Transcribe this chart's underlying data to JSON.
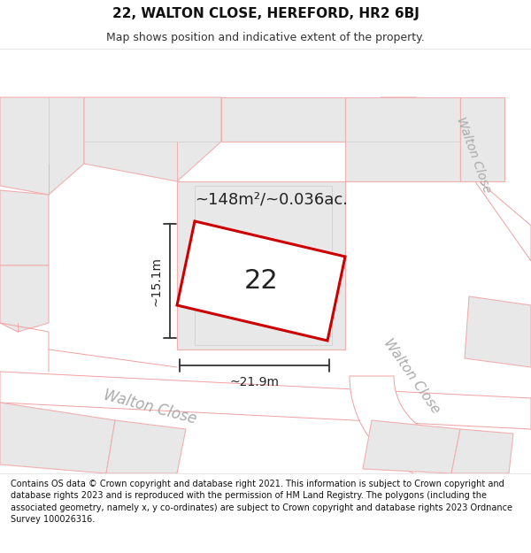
{
  "title_line1": "22, WALTON CLOSE, HEREFORD, HR2 6BJ",
  "title_line2": "Map shows position and indicative extent of the property.",
  "area_text": "~148m²/~0.036ac.",
  "dim_width": "~21.9m",
  "dim_height": "~15.1m",
  "property_label": "22",
  "footer": "Contains OS data © Crown copyright and database right 2021. This information is subject to Crown copyright and database rights 2023 and is reproduced with the permission of HM Land Registry. The polygons (including the associated geometry, namely x, y co-ordinates) are subject to Crown copyright and database rights 2023 Ordnance Survey 100026316.",
  "map_bg": "#f7f7f7",
  "building_fill": "#e8e8e8",
  "building_edge_light": "#f0b0b0",
  "building_edge_dark": "#cccccc",
  "road_fill": "#ffffff",
  "road_edge": "#f0a0a0",
  "property_edge": "#cc0000",
  "property_fill": "#ffffff",
  "dim_color": "#333333",
  "road_label_color": "#aaaaaa",
  "text_color": "#222222"
}
